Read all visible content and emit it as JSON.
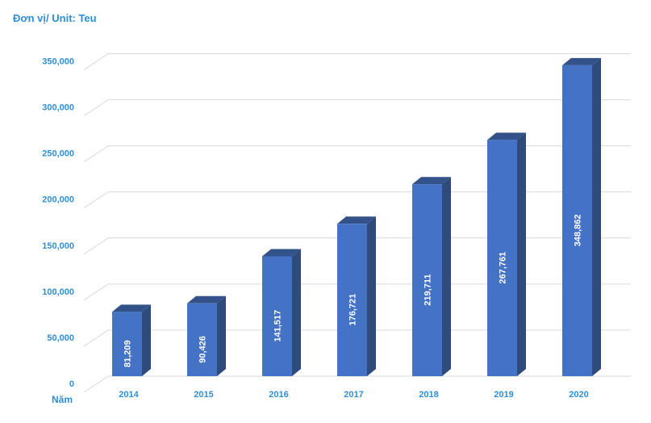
{
  "unit_label": "Đơn vị/ Unit: Teu",
  "x_axis_title": "Năm",
  "colors": {
    "bar_front": "#4472c4",
    "bar_side": "#2f4b7c",
    "bar_top": "#34528a",
    "grid": "#d9d9d9",
    "axis_text": "#2e8fd6"
  },
  "chart_data": {
    "type": "bar",
    "categories": [
      "2014",
      "2015",
      "2016",
      "2017",
      "2018",
      "2019",
      "2020"
    ],
    "values": [
      81209,
      90426,
      141517,
      176721,
      219711,
      267761,
      348862
    ],
    "value_labels": [
      "81,209",
      "90,426",
      "141,517",
      "176,721",
      "219,711",
      "267,761",
      "348,862"
    ],
    "y_ticks": [
      0,
      50000,
      100000,
      150000,
      200000,
      250000,
      300000,
      350000
    ],
    "y_tick_labels": [
      "0",
      "50,000",
      "100,000",
      "150,000",
      "200,000",
      "250,000",
      "300,000",
      "350,000"
    ],
    "ylim": [
      0,
      375000
    ],
    "xlabel": "Năm",
    "ylabel": "",
    "title": "",
    "grid": true,
    "legend": "none",
    "style": "3d-columns"
  }
}
